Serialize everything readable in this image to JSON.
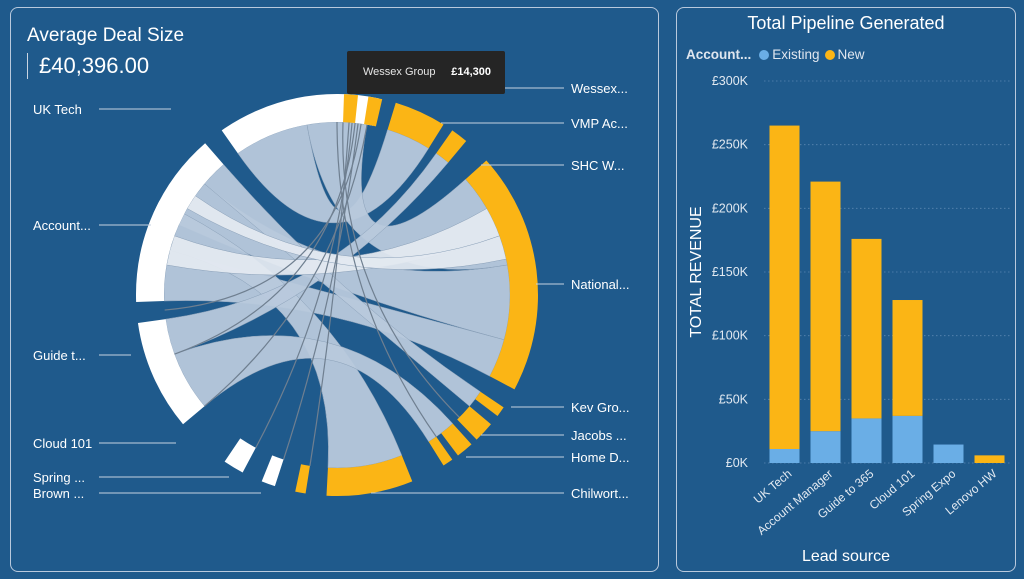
{
  "left_card": {
    "title": "Average Deal Size",
    "value": "£40,396.00",
    "tooltip": {
      "name": "Wessex Group",
      "value": "£14,300"
    }
  },
  "chord_data": {
    "type": "chord",
    "colors": {
      "lead_source": "#ffffff",
      "account_existing": "#f4f4f4",
      "account_new": "#fbb515",
      "ribbon": "#b8c9dc",
      "ribbon_highlight": "#e3e9f0"
    },
    "left_labels": [
      "UK Tech",
      "Account...",
      "Guide t...",
      "Cloud 101",
      "Spring ...",
      "Brown ..."
    ],
    "right_labels": [
      "Wessex...",
      "VMP Ac...",
      "SHC W...",
      "National...",
      "Kev Gro...",
      "Jacobs ...",
      "Home D...",
      "Chilwort..."
    ]
  },
  "right_card": {
    "title": "Total Pipeline Generated",
    "legend_title": "Account...",
    "x_title": "Lead source"
  },
  "chart_data": {
    "type": "bar",
    "stacked": true,
    "title": "Total Pipeline Generated",
    "xlabel": "Lead source",
    "ylabel": "TOTAL REVENUE",
    "categories": [
      "UK Tech",
      "Account Manager",
      "Guide to 365",
      "Cloud 101",
      "Spring Expo",
      "Lenovo HW"
    ],
    "series": [
      {
        "name": "Existing",
        "color": "#6aaee6",
        "values": [
          11000,
          25000,
          35000,
          37000,
          14500,
          0
        ]
      },
      {
        "name": "New",
        "color": "#fbb515",
        "values": [
          254000,
          196000,
          141000,
          91000,
          0,
          6000
        ]
      }
    ],
    "ylim": [
      0,
      300000
    ],
    "yticks": [
      0,
      50000,
      100000,
      150000,
      200000,
      250000,
      300000
    ],
    "ytick_labels": [
      "£0K",
      "£50K",
      "£100K",
      "£150K",
      "£200K",
      "£250K",
      "£300K"
    ],
    "grid": true,
    "legend": "top-left"
  }
}
